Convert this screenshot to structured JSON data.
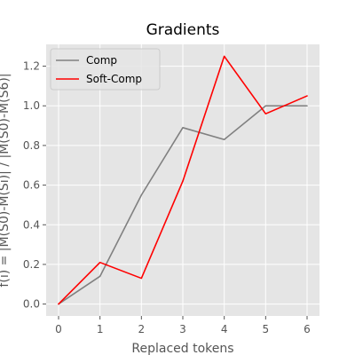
{
  "chart_data": {
    "type": "line",
    "title": "Gradients",
    "xlabel": "Replaced tokens",
    "ylabel": "f(i) = |M(S0)-M(Si)| / |M(S0)-M(S6)|",
    "x": [
      0,
      1,
      2,
      3,
      4,
      5,
      6
    ],
    "xlim": [
      -0.3,
      6.3
    ],
    "ylim": [
      -0.06,
      1.31
    ],
    "xticks": [
      "0",
      "1",
      "2",
      "3",
      "4",
      "5",
      "6"
    ],
    "yticks": [
      "0.0",
      "0.2",
      "0.4",
      "0.6",
      "0.8",
      "1.0",
      "1.2"
    ],
    "grid": true,
    "legend_position": "top-left",
    "background_color": "#e5e5e5",
    "grid_color": "#ffffff",
    "series": [
      {
        "name": "Comp",
        "color": "#808080",
        "values": [
          0.0,
          0.14,
          0.55,
          0.89,
          0.83,
          1.0,
          1.0
        ]
      },
      {
        "name": "Soft-Comp",
        "color": "#ff0000",
        "values": [
          0.0,
          0.21,
          0.13,
          0.62,
          1.25,
          0.96,
          1.05
        ]
      }
    ]
  }
}
